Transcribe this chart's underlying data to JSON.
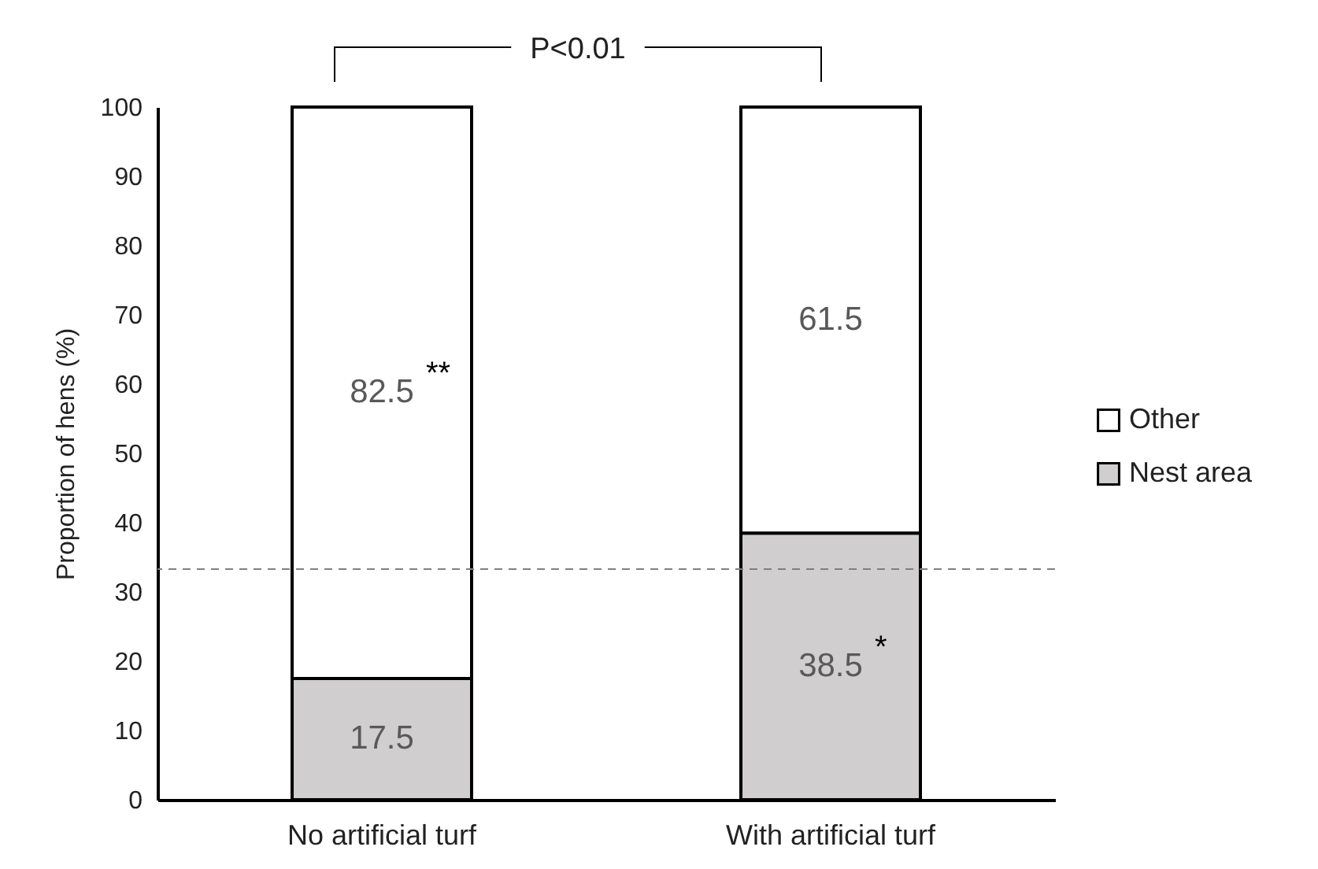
{
  "chart_data": {
    "type": "bar",
    "stacked": true,
    "ylabel": "Proportion of hens (%)",
    "categories": [
      "No artificial turf",
      "With artificial turf"
    ],
    "series": [
      {
        "name": "Nest area",
        "color": "#d0cece",
        "values": [
          17.5,
          38.5
        ]
      },
      {
        "name": "Other",
        "color": "#ffffff",
        "values": [
          82.5,
          61.5
        ]
      }
    ],
    "ylim": [
      0,
      100
    ],
    "yticks": [
      0,
      10,
      20,
      30,
      40,
      50,
      60,
      70,
      80,
      90,
      100
    ],
    "data_labels": true,
    "grid": false,
    "legend": "right",
    "ref_lines": [
      {
        "axis": "y",
        "value": 33.3,
        "color": "#808080",
        "line_style": "dashed"
      }
    ],
    "annotations": [
      "**",
      "*",
      "P<0.01"
    ]
  }
}
